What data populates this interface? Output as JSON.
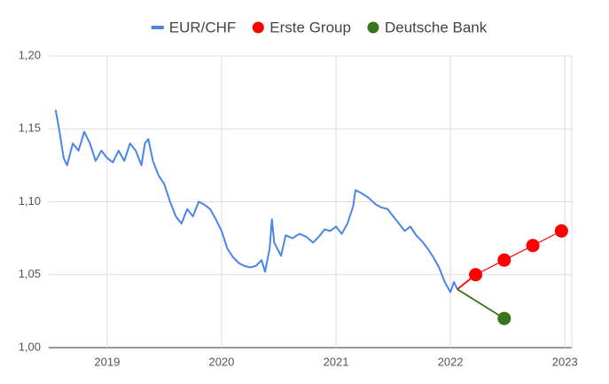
{
  "chart_data": {
    "type": "line",
    "xlim": [
      2018.49,
      2023.06
    ],
    "xticks": [
      2019,
      2020,
      2021,
      2022,
      2023
    ],
    "ylim": [
      1.0,
      1.2
    ],
    "yticks": [
      {
        "value": 1.0,
        "label": "1,00"
      },
      {
        "value": 1.05,
        "label": "1,05"
      },
      {
        "value": 1.1,
        "label": "1,10"
      },
      {
        "value": 1.15,
        "label": "1,15"
      },
      {
        "value": 1.2,
        "label": "1,20"
      }
    ],
    "grid": true,
    "legend": "top",
    "series": [
      {
        "name": "EUR/CHF",
        "color": "#4a86e8",
        "marker": false,
        "x": [
          2018.55,
          2018.58,
          2018.62,
          2018.65,
          2018.7,
          2018.75,
          2018.8,
          2018.85,
          2018.9,
          2018.95,
          2019.0,
          2019.05,
          2019.1,
          2019.15,
          2019.2,
          2019.25,
          2019.3,
          2019.33,
          2019.36,
          2019.4,
          2019.45,
          2019.5,
          2019.55,
          2019.6,
          2019.65,
          2019.7,
          2019.75,
          2019.8,
          2019.85,
          2019.9,
          2019.95,
          2020.0,
          2020.05,
          2020.1,
          2020.15,
          2020.2,
          2020.25,
          2020.3,
          2020.35,
          2020.38,
          2020.42,
          2020.44,
          2020.46,
          2020.52,
          2020.56,
          2020.62,
          2020.68,
          2020.74,
          2020.8,
          2020.85,
          2020.9,
          2020.95,
          2021.0,
          2021.05,
          2021.1,
          2021.15,
          2021.17,
          2021.22,
          2021.28,
          2021.35,
          2021.4,
          2021.45,
          2021.5,
          2021.55,
          2021.6,
          2021.65,
          2021.7,
          2021.75,
          2021.8,
          2021.85,
          2021.9,
          2021.95,
          2022.0,
          2022.03,
          2022.06
        ],
        "values": [
          1.163,
          1.15,
          1.13,
          1.125,
          1.14,
          1.135,
          1.148,
          1.14,
          1.128,
          1.135,
          1.13,
          1.127,
          1.135,
          1.128,
          1.14,
          1.135,
          1.125,
          1.14,
          1.143,
          1.128,
          1.118,
          1.112,
          1.1,
          1.09,
          1.085,
          1.095,
          1.09,
          1.1,
          1.098,
          1.095,
          1.088,
          1.08,
          1.068,
          1.062,
          1.058,
          1.056,
          1.055,
          1.056,
          1.06,
          1.052,
          1.068,
          1.088,
          1.072,
          1.063,
          1.077,
          1.075,
          1.078,
          1.076,
          1.072,
          1.076,
          1.081,
          1.08,
          1.083,
          1.078,
          1.085,
          1.097,
          1.108,
          1.106,
          1.103,
          1.098,
          1.096,
          1.095,
          1.09,
          1.085,
          1.08,
          1.083,
          1.077,
          1.073,
          1.068,
          1.062,
          1.055,
          1.045,
          1.038,
          1.045,
          1.04
        ]
      },
      {
        "name": "Erste Group",
        "color": "#ff0000",
        "marker": true,
        "x": [
          2022.22,
          2022.47,
          2022.72,
          2022.97
        ],
        "values": [
          1.05,
          1.06,
          1.07,
          1.08
        ]
      },
      {
        "name": "Deutsche Bank",
        "color": "#38761d",
        "marker": true,
        "x": [
          2022.47
        ],
        "values": [
          1.02
        ]
      }
    ]
  }
}
